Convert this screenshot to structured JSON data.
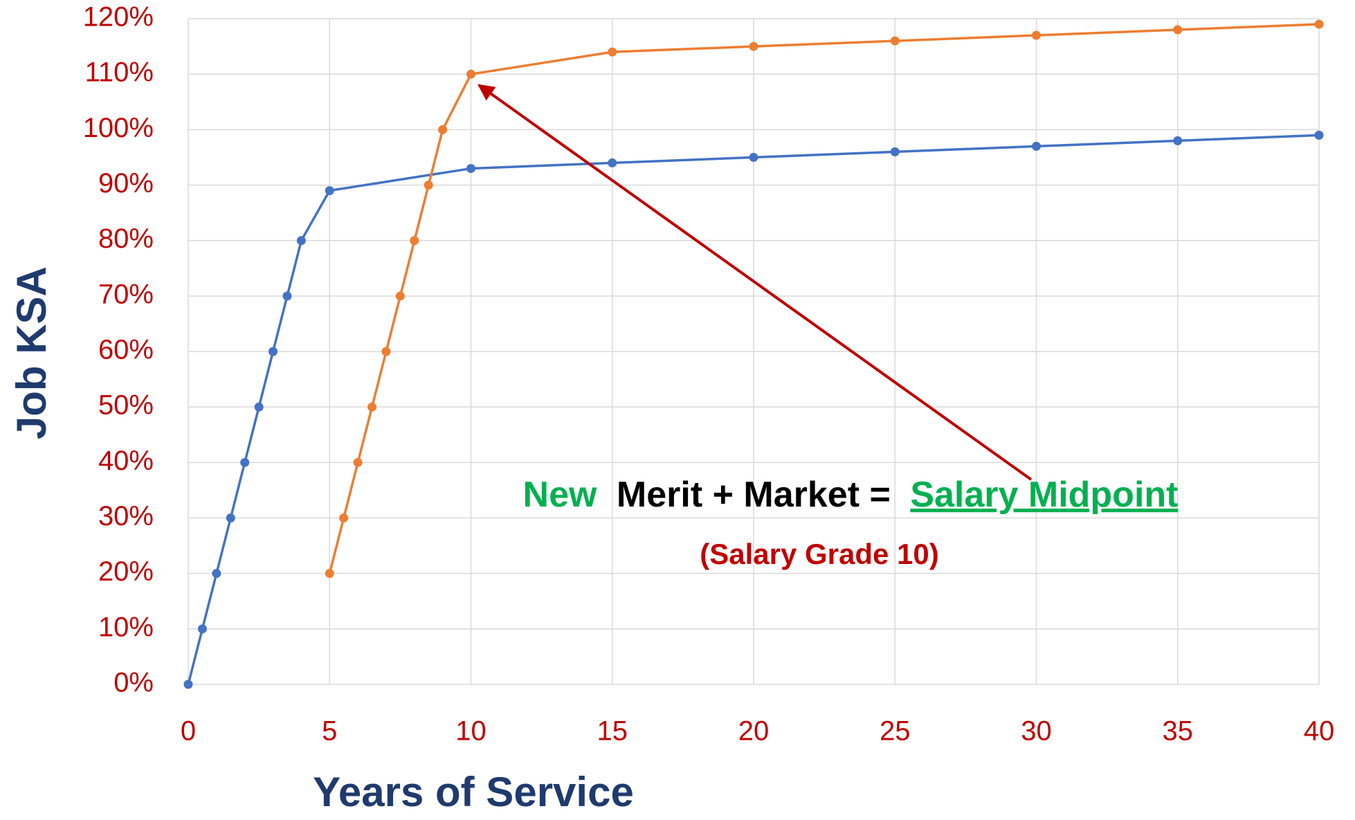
{
  "chart_data": {
    "type": "line",
    "x_label": "Years of Service",
    "y_label": "Job KSA",
    "annotation": {
      "parts": [
        "New",
        "Merit + Market =",
        "Salary Midpoint"
      ],
      "subtext": "(Salary Grade 10)"
    },
    "series": [
      {
        "color": "#4472c4",
        "x": [
          0,
          0.5,
          1,
          1.5,
          2,
          2.5,
          3,
          3.5,
          4,
          5,
          10,
          15,
          20,
          25,
          30,
          35,
          40
        ],
        "values": [
          0,
          10,
          20,
          30,
          40,
          50,
          60,
          70,
          80,
          89,
          93,
          94,
          95,
          96,
          97,
          98,
          99
        ]
      },
      {
        "color": "#ed7d31",
        "x": [
          5,
          5.5,
          6,
          6.5,
          7,
          7.5,
          8,
          8.5,
          9,
          10,
          15,
          20,
          25,
          30,
          35,
          40
        ],
        "values": [
          20,
          30,
          40,
          50,
          60,
          70,
          80,
          90,
          100,
          110,
          114,
          115,
          116,
          117,
          118,
          119
        ]
      }
    ],
    "xlim": [
      0,
      40
    ],
    "xticks": [
      0,
      5,
      10,
      15,
      20,
      25,
      30,
      35,
      40
    ],
    "ylim": [
      0,
      120
    ],
    "yticks": [
      {
        "value": 0,
        "label": "0%"
      },
      {
        "value": 10,
        "label": "10%"
      },
      {
        "value": 20,
        "label": "20%"
      },
      {
        "value": 30,
        "label": "30%"
      },
      {
        "value": 40,
        "label": "40%"
      },
      {
        "value": 50,
        "label": "50%"
      },
      {
        "value": 60,
        "label": "60%"
      },
      {
        "value": 70,
        "label": "70%"
      },
      {
        "value": 80,
        "label": "80%"
      },
      {
        "value": 90,
        "label": "90%"
      },
      {
        "value": 100,
        "label": "100%"
      },
      {
        "value": 110,
        "label": "110%"
      },
      {
        "value": 120,
        "label": "120%"
      }
    ],
    "grid": true
  }
}
